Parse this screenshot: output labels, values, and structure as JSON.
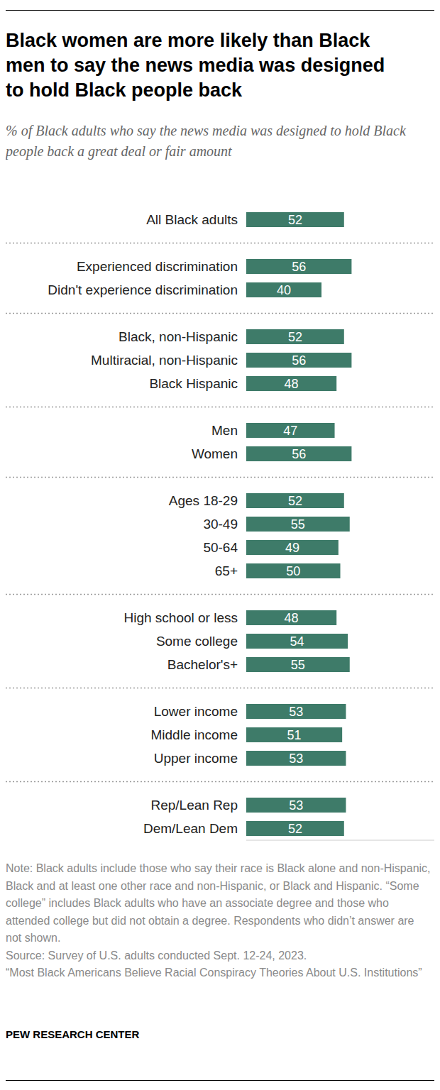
{
  "chart_data": {
    "type": "bar",
    "orientation": "horizontal",
    "title": "Black women are more likely than Black men to say the news media was designed to hold Black people back",
    "subtitle": "% of Black adults who say the news media was designed to hold Black people back a great deal or fair amount",
    "categories": [
      "All Black adults",
      null,
      "Experienced discrimination",
      "Didn't experience discrimination",
      null,
      "Black, non-Hispanic",
      "Multiracial, non-Hispanic",
      "Black Hispanic",
      null,
      "Men",
      "Women",
      null,
      "Ages 18-29",
      "30-49",
      "50-64",
      "65+",
      null,
      "High school or less",
      "Some college",
      "Bachelor's+",
      null,
      "Lower income",
      "Middle income",
      "Upper income",
      null,
      "Rep/Lean Rep",
      "Dem/Lean Dem"
    ],
    "values": [
      52,
      null,
      56,
      40,
      null,
      52,
      56,
      48,
      null,
      47,
      56,
      null,
      52,
      55,
      49,
      50,
      null,
      48,
      54,
      55,
      null,
      53,
      51,
      53,
      null,
      53,
      52
    ],
    "color": "#3e7b69",
    "xlim": [
      0,
      100
    ],
    "data_labels": true,
    "tick_labels": "y",
    "note": "Note: Black adults include those who say their race is Black alone and non-Hispanic, Black and at least one other race and non-Hispanic, or Black and Hispanic. “Some college” includes Black adults who have an associate degree and those who attended college but did not obtain a degree. Respondents who didn’t answer are not shown.",
    "source": "Source: Survey of U.S. adults conducted Sept. 12-24, 2023.",
    "report_title": "“Most Black Americans Believe Racial Conspiracy Theories About U.S. Institutions”",
    "credit": "PEW RESEARCH CENTER"
  }
}
